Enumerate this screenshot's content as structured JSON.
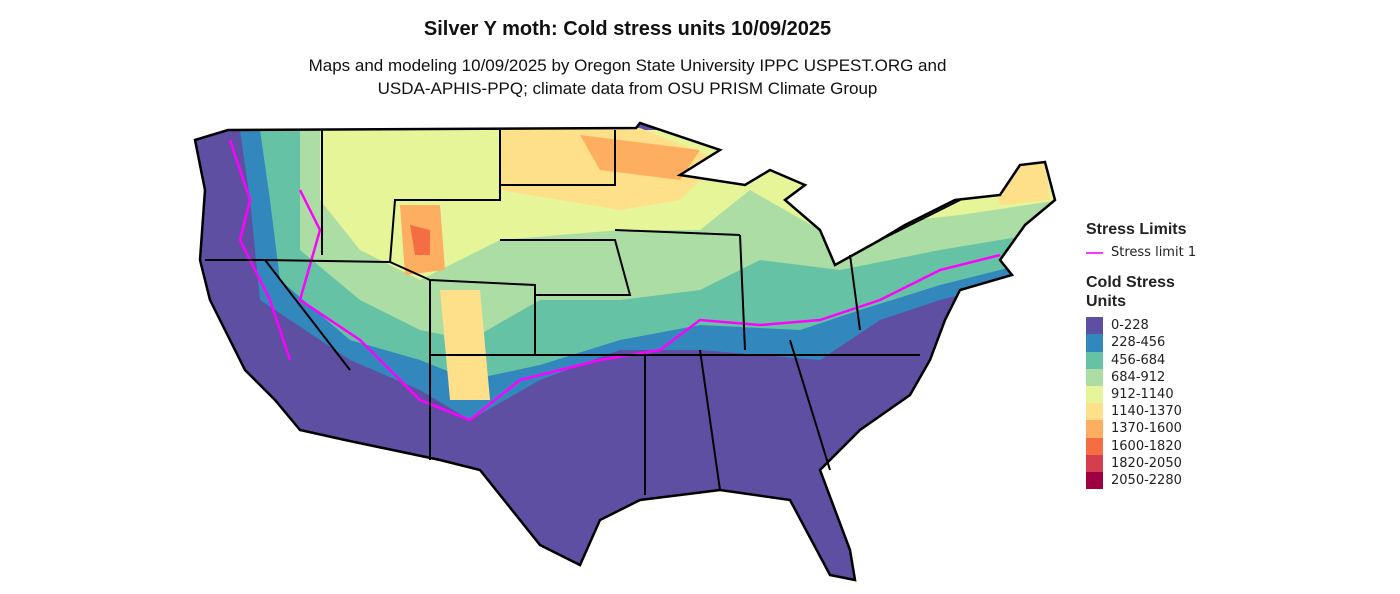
{
  "title": "Silver Y moth: Cold stress units 10/09/2025",
  "subtitle_line1": "Maps and modeling 10/09/2025 by Oregon State University IPPC USPEST.ORG and",
  "subtitle_line2": "USDA-APHIS-PPQ; climate data from OSU PRISM Climate Group",
  "legend": {
    "stress_title": "Stress Limits",
    "stress_item": {
      "label": "Stress limit 1",
      "color": "#ff33ff"
    },
    "units_title": "Cold Stress Units",
    "bins": [
      {
        "label": "0-228",
        "color": "#5E4FA2"
      },
      {
        "label": "228-456",
        "color": "#3288BD"
      },
      {
        "label": "456-684",
        "color": "#66C2A5"
      },
      {
        "label": "684-912",
        "color": "#ABDDA4"
      },
      {
        "label": "912-1140",
        "color": "#E6F598"
      },
      {
        "label": "1140-1370",
        "color": "#FEE08B"
      },
      {
        "label": "1370-1600",
        "color": "#FDAE61"
      },
      {
        "label": "1600-1820",
        "color": "#F46D43"
      },
      {
        "label": "1820-2050",
        "color": "#D53E4F"
      },
      {
        "label": "2050-2280",
        "color": "#9E0142"
      }
    ]
  }
}
